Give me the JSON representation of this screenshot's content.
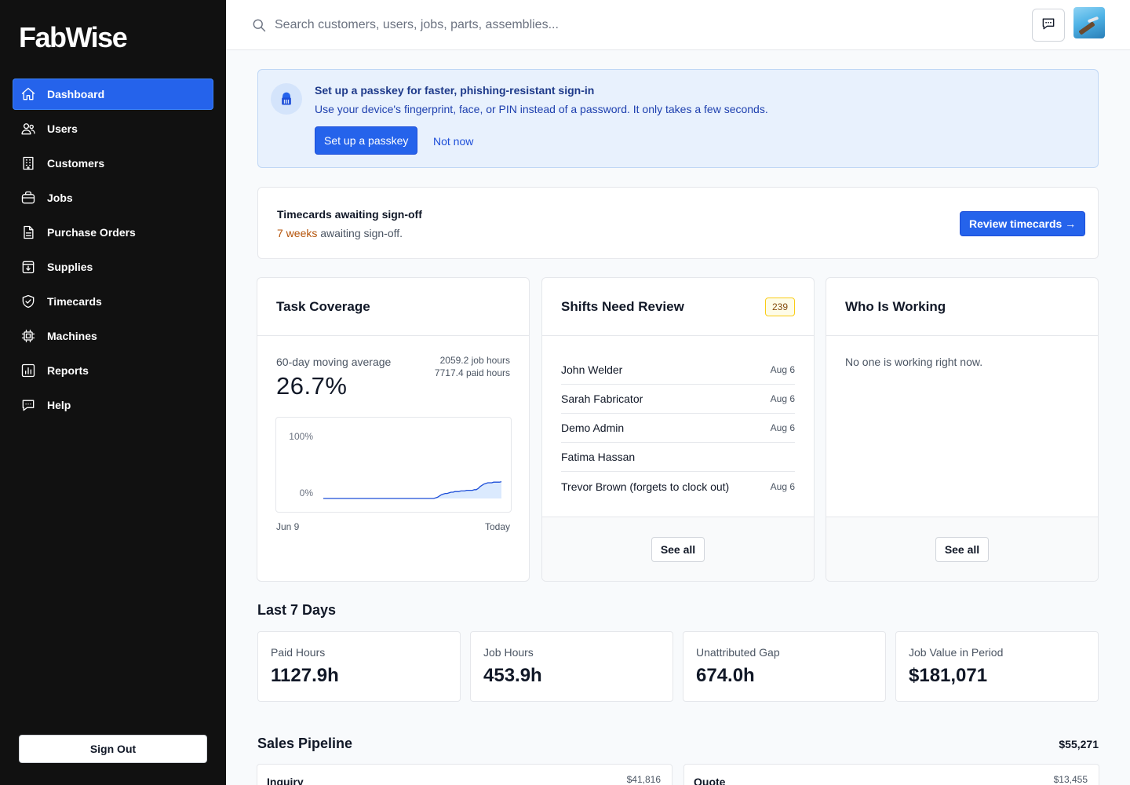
{
  "app": {
    "brand": "FabWise"
  },
  "sidebar": {
    "items": [
      {
        "label": "Dashboard",
        "icon": "home-icon",
        "active": true
      },
      {
        "label": "Users",
        "icon": "users-icon"
      },
      {
        "label": "Customers",
        "icon": "building-icon"
      },
      {
        "label": "Jobs",
        "icon": "briefcase-icon"
      },
      {
        "label": "Purchase Orders",
        "icon": "document-icon"
      },
      {
        "label": "Supplies",
        "icon": "archive-box-icon"
      },
      {
        "label": "Timecards",
        "icon": "shield-check-icon"
      },
      {
        "label": "Machines",
        "icon": "cpu-chip-icon"
      },
      {
        "label": "Reports",
        "icon": "bar-chart-icon"
      },
      {
        "label": "Help",
        "icon": "chat-bubble-icon"
      }
    ],
    "sign_out": "Sign Out"
  },
  "header": {
    "search_placeholder": "Search customers, users, jobs, parts, assemblies..."
  },
  "passkey_banner": {
    "title": "Set up a passkey for faster, phishing-resistant sign-in",
    "text": "Use your device's fingerprint, face, or PIN instead of a password. It only takes a few seconds.",
    "primary_label": "Set up a passkey",
    "secondary_label": "Not now"
  },
  "timecards": {
    "title": "Timecards awaiting sign-off",
    "weeks": "7 weeks",
    "suffix": " awaiting sign-off.",
    "button": "Review timecards →"
  },
  "task_coverage": {
    "title": "Task Coverage",
    "label": "60-day moving average",
    "value": "26.7%",
    "job_hours": "2059.2 job hours",
    "paid_hours": "7717.4 paid hours",
    "chart_data": {
      "type": "area",
      "y_ticks": [
        "100%",
        "0%"
      ],
      "x_start": "Jun 9",
      "x_end": "Today",
      "ylim": [
        0,
        100
      ],
      "values": [
        0,
        0,
        0,
        0,
        0,
        0,
        0,
        0,
        0,
        0,
        0,
        0,
        0,
        0,
        0,
        0,
        0,
        0,
        0,
        0,
        0,
        0,
        0,
        0,
        0,
        0,
        0,
        0,
        0,
        0,
        0,
        0,
        0,
        0,
        0,
        0,
        0,
        0,
        0,
        0,
        0,
        0,
        0,
        0,
        0,
        0,
        0,
        0,
        0,
        0,
        0,
        0,
        0,
        0,
        0,
        0,
        0,
        0,
        1,
        2,
        4,
        6,
        7,
        8,
        8,
        9,
        10,
        10,
        11,
        11,
        11,
        12,
        12,
        12,
        13,
        13,
        13,
        13,
        14,
        14,
        16,
        19,
        21,
        23,
        24,
        25,
        25,
        25,
        26,
        26,
        26,
        26,
        26.7
      ]
    }
  },
  "shifts": {
    "title": "Shifts Need Review",
    "badge": "239",
    "rows": [
      {
        "name": "John Welder",
        "date": "Aug 6"
      },
      {
        "name": "Sarah Fabricator",
        "date": "Aug 6"
      },
      {
        "name": "Demo Admin",
        "date": "Aug 6"
      },
      {
        "name": "Fatima Hassan",
        "date": ""
      },
      {
        "name": "Trevor Brown (forgets to clock out)",
        "date": "Aug 6"
      }
    ],
    "see_all": "See all"
  },
  "who_working": {
    "title": "Who Is Working",
    "empty": "No one is working right now.",
    "see_all": "See all"
  },
  "last7": {
    "title": "Last 7 Days",
    "stats": [
      {
        "label": "Paid Hours",
        "value": "1127.9h"
      },
      {
        "label": "Job Hours",
        "value": "453.9h"
      },
      {
        "label": "Unattributed Gap",
        "value": "674.0h"
      },
      {
        "label": "Job Value in Period",
        "value": "$181,071"
      }
    ]
  },
  "pipeline": {
    "title": "Sales Pipeline",
    "total": "$55,271",
    "stages": [
      {
        "name": "Inquiry",
        "value": "$41,816"
      },
      {
        "name": "Quote",
        "value": "$13,455"
      }
    ]
  }
}
